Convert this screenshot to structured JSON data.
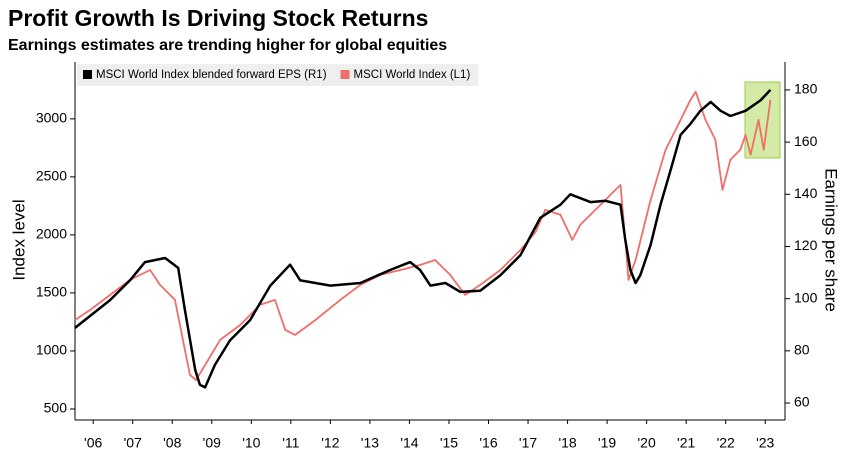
{
  "chart_data": {
    "type": "line",
    "title": "Profit Growth Is Driving Stock Returns",
    "subtitle": "Earnings estimates are trending higher for global equities",
    "y_label": "Index level",
    "y2_label": "Earnings per share",
    "xlim": [
      2006.04,
      2024.0
    ],
    "xticks": [
      {
        "value": 2006.5,
        "label": "'06"
      },
      {
        "value": 2007.5,
        "label": "'07"
      },
      {
        "value": 2008.5,
        "label": "'08"
      },
      {
        "value": 2009.5,
        "label": "'09"
      },
      {
        "value": 2010.5,
        "label": "'10"
      },
      {
        "value": 2011.5,
        "label": "'11"
      },
      {
        "value": 2012.5,
        "label": "'12"
      },
      {
        "value": 2013.5,
        "label": "'13"
      },
      {
        "value": 2014.5,
        "label": "'14"
      },
      {
        "value": 2015.5,
        "label": "'15"
      },
      {
        "value": 2016.5,
        "label": "'16"
      },
      {
        "value": 2017.5,
        "label": "'17"
      },
      {
        "value": 2018.5,
        "label": "'18"
      },
      {
        "value": 2019.5,
        "label": "'19"
      },
      {
        "value": 2020.5,
        "label": "'20"
      },
      {
        "value": 2021.5,
        "label": "'21"
      },
      {
        "value": 2022.5,
        "label": "'22"
      },
      {
        "value": 2023.5,
        "label": "'23"
      }
    ],
    "ylim": [
      405,
      3490
    ],
    "yticks": [
      500,
      1000,
      1500,
      2000,
      2500,
      3000
    ],
    "y2lim": [
      53.5,
      190.7
    ],
    "y2ticks": [
      60,
      80,
      100,
      120,
      140,
      160,
      180
    ],
    "legend": "top-left",
    "series": [
      {
        "name": "MSCI World Index (L1)",
        "color": "#ef6f68",
        "x": [
          2006.04,
          2006.42,
          2006.93,
          2007.43,
          2007.94,
          2008.19,
          2008.57,
          2008.82,
          2008.95,
          2009.1,
          2009.33,
          2009.71,
          2010.22,
          2010.72,
          2011.1,
          2011.36,
          2011.61,
          2012.12,
          2012.75,
          2013.26,
          2013.76,
          2014.27,
          2014.77,
          2015.15,
          2015.53,
          2015.91,
          2016.29,
          2016.8,
          2017.31,
          2017.69,
          2017.94,
          2018.32,
          2018.62,
          2018.82,
          2019.33,
          2019.71,
          2019.84,
          2019.96,
          2020.04,
          2020.22,
          2020.6,
          2020.98,
          2021.36,
          2021.61,
          2021.74,
          2021.99,
          2022.24,
          2022.42,
          2022.62,
          2022.87,
          2023.0,
          2023.13,
          2023.33,
          2023.46,
          2023.63
        ],
        "values": [
          1267,
          1353,
          1483,
          1612,
          1698,
          1569,
          1440,
          1009,
          793,
          750,
          879,
          1095,
          1224,
          1397,
          1440,
          1181,
          1138,
          1267,
          1440,
          1569,
          1655,
          1698,
          1741,
          1784,
          1655,
          1483,
          1569,
          1698,
          1871,
          2026,
          2216,
          2172,
          1957,
          2086,
          2259,
          2388,
          2431,
          1957,
          1612,
          1784,
          2302,
          2733,
          2991,
          3164,
          3233,
          2991,
          2819,
          2388,
          2647,
          2733,
          2862,
          2690,
          2991,
          2733,
          3164
        ]
      },
      {
        "name": "MSCI World Index blended forward EPS (R1)",
        "color": "#000000",
        "axis": "y2",
        "x": [
          2006.04,
          2006.93,
          2007.43,
          2007.81,
          2008.32,
          2008.65,
          2008.82,
          2009.08,
          2009.2,
          2009.33,
          2009.58,
          2009.96,
          2010.47,
          2010.98,
          2011.48,
          2011.74,
          2012.5,
          2013.26,
          2014.01,
          2014.52,
          2014.77,
          2015.03,
          2015.41,
          2015.79,
          2016.29,
          2016.8,
          2017.31,
          2017.81,
          2018.32,
          2018.57,
          2019.08,
          2019.46,
          2019.84,
          2019.96,
          2020.09,
          2020.22,
          2020.34,
          2020.6,
          2020.85,
          2021.1,
          2021.36,
          2021.61,
          2021.86,
          2022.12,
          2022.37,
          2022.62,
          2023.0,
          2023.38,
          2023.63
        ],
        "values": [
          88.8,
          99.5,
          107,
          114,
          115.6,
          111.8,
          95.7,
          72.7,
          67,
          66,
          74.6,
          84,
          91.8,
          105,
          113,
          107,
          105,
          106,
          111,
          114,
          111,
          105,
          106,
          102.6,
          103,
          109,
          116.7,
          131,
          136,
          140,
          137,
          137.5,
          136,
          122.5,
          111,
          106,
          109,
          120.6,
          136,
          149,
          162.8,
          167,
          172,
          175.4,
          172,
          170,
          172,
          176,
          180
        ]
      }
    ]
  }
}
